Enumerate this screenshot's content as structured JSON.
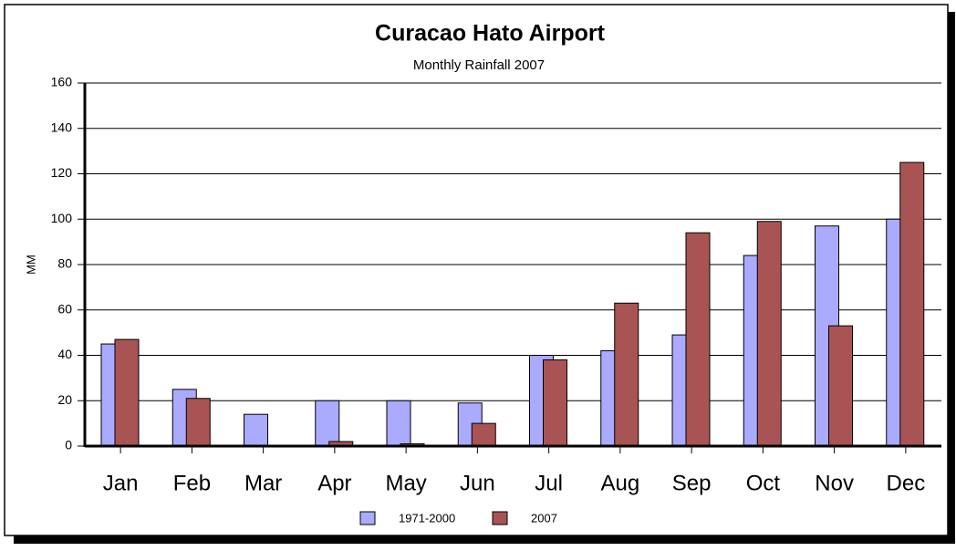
{
  "chart_data": {
    "type": "bar",
    "title": "Curacao Hato Airport",
    "subtitle": "Monthly Rainfall 2007",
    "y_label": "MM",
    "categories": [
      "Jan",
      "Feb",
      "Mar",
      "Apr",
      "May",
      "Jun",
      "Jul",
      "Aug",
      "Sep",
      "Oct",
      "Nov",
      "Dec"
    ],
    "series": [
      {
        "name": "1971-2000",
        "color": "#aaaaff",
        "values": [
          45,
          25,
          14,
          20,
          20,
          19,
          40,
          42,
          49,
          84,
          97,
          100
        ]
      },
      {
        "name": "2007",
        "color": "#a85454",
        "values": [
          47,
          21,
          0,
          2,
          1,
          10,
          38,
          63,
          94,
          99,
          53,
          125
        ]
      }
    ],
    "ylim": [
      0,
      160
    ],
    "yticks": [
      0,
      20,
      40,
      60,
      80,
      100,
      120,
      140,
      160
    ],
    "grid": true,
    "legend": "bottom"
  }
}
